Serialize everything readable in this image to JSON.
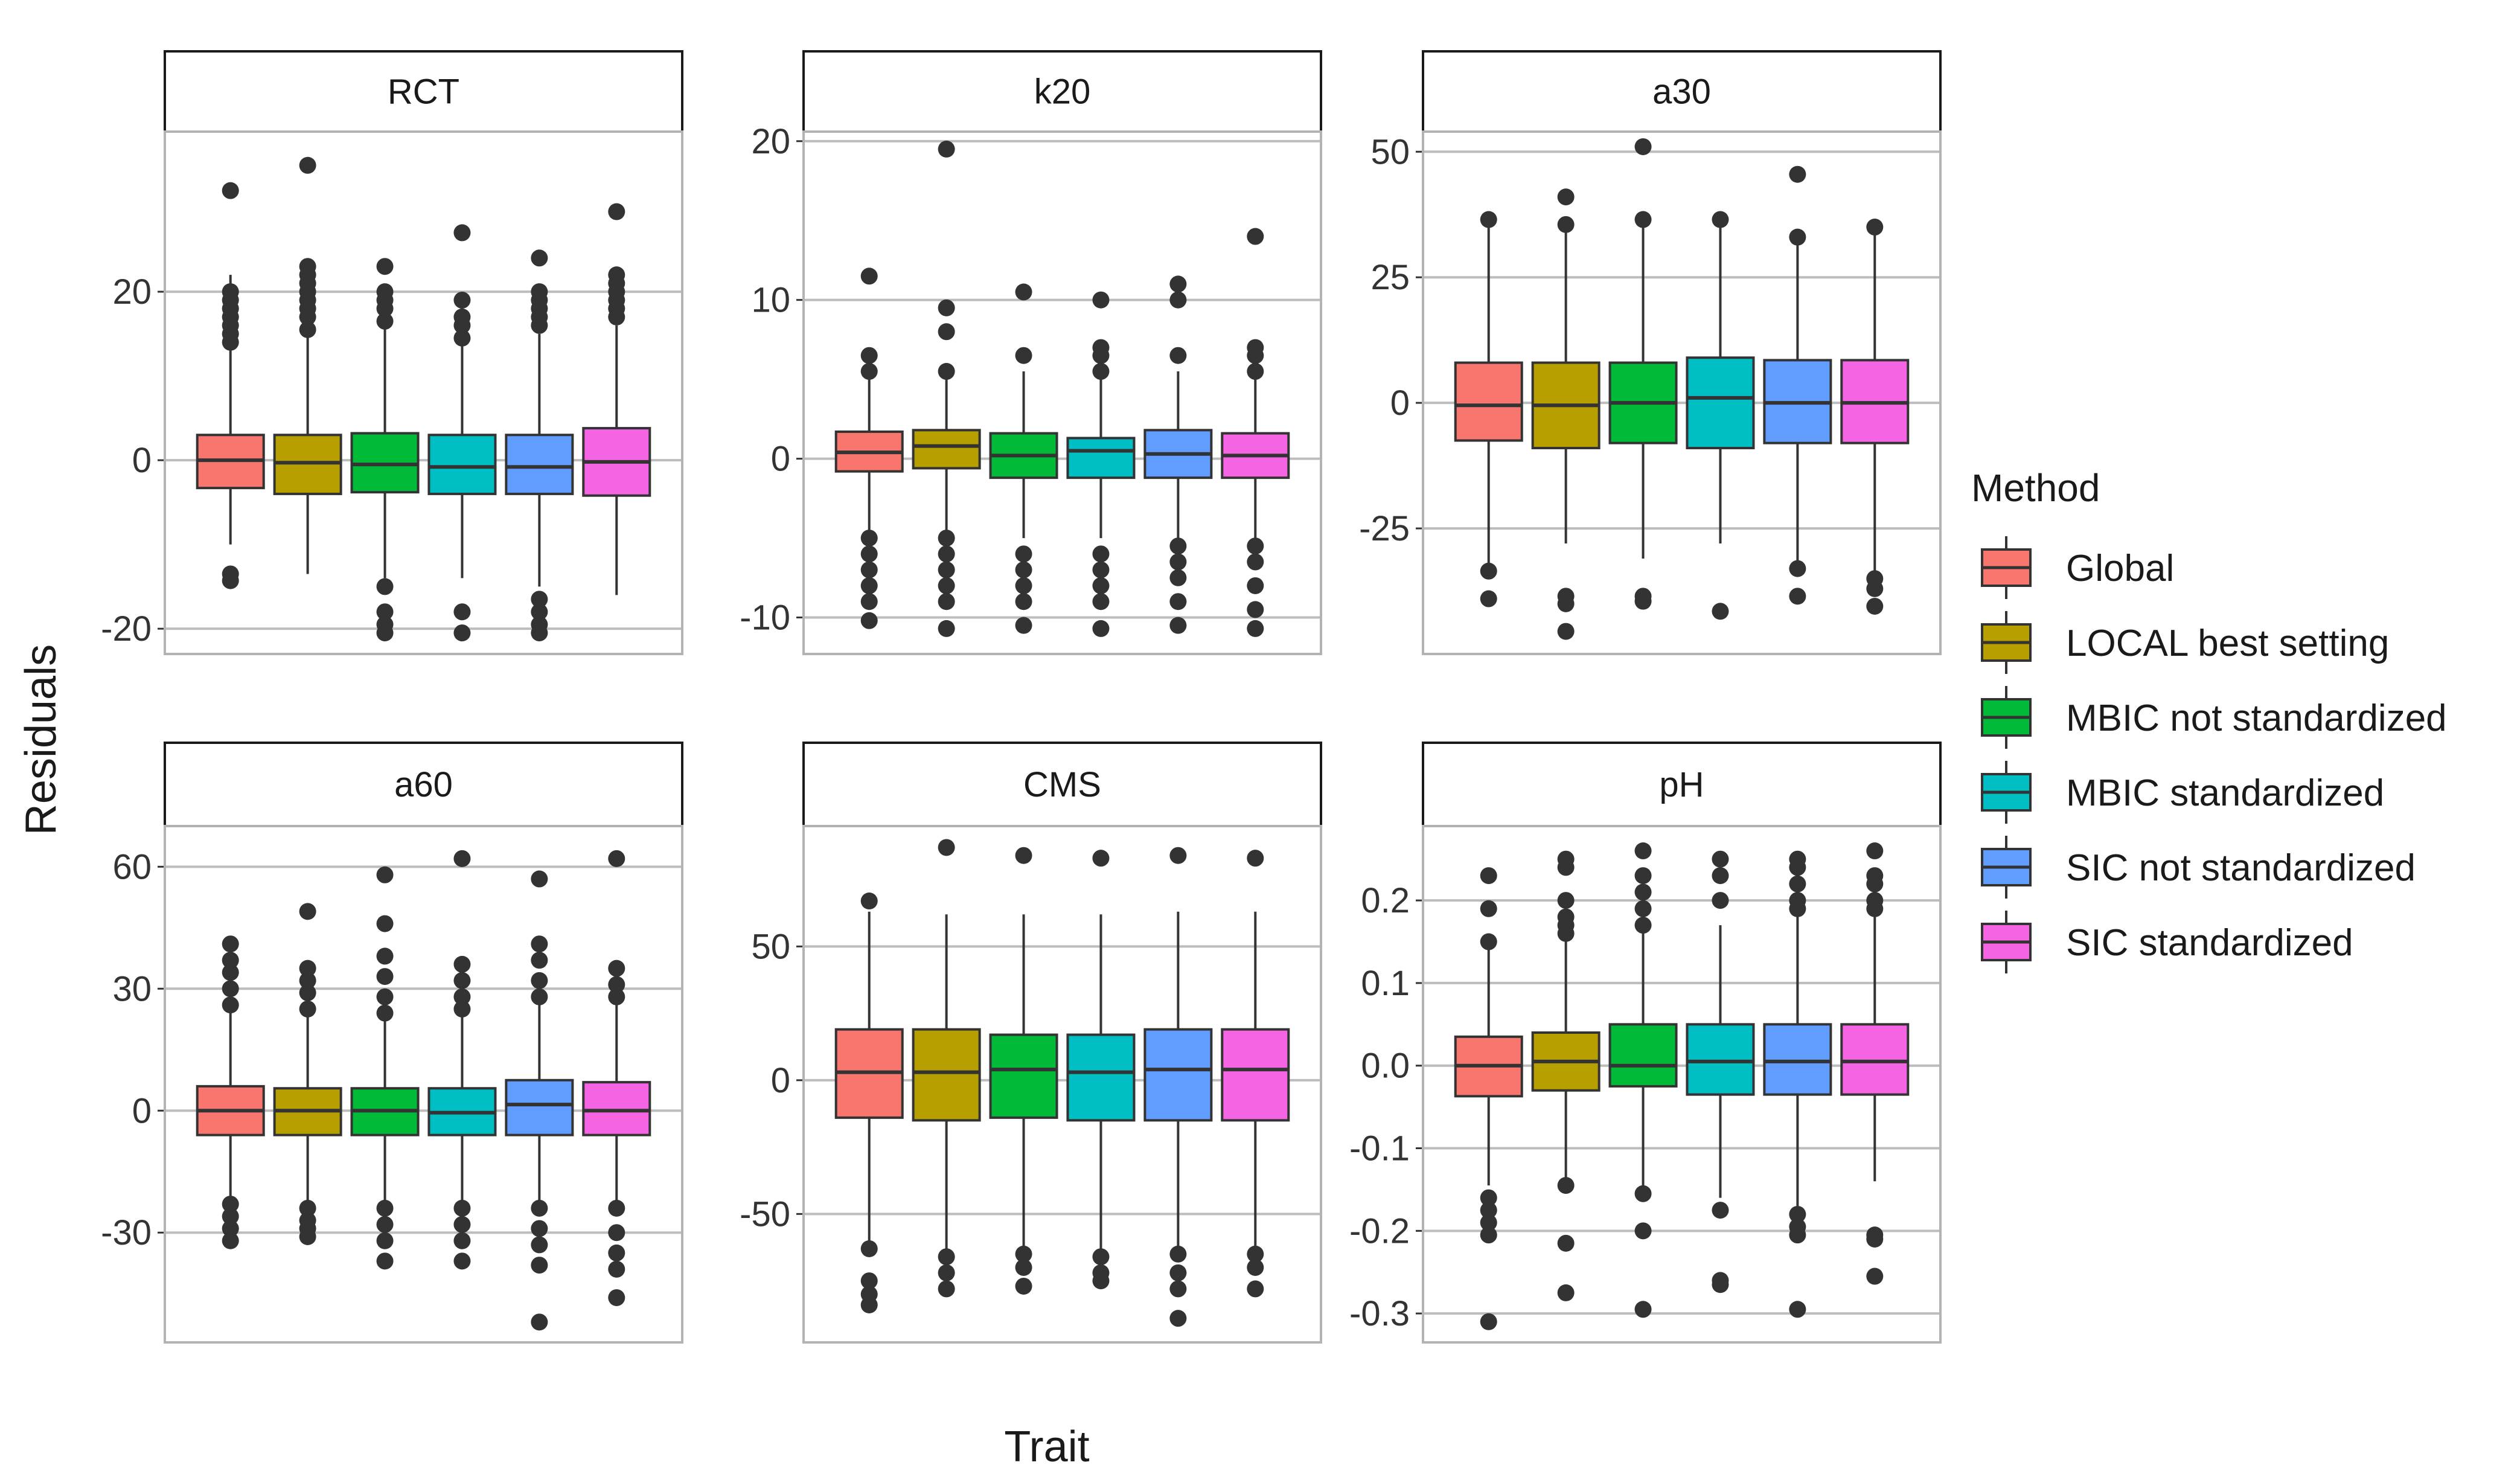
{
  "chart_data": {
    "type": "box",
    "xlabel": "Trait",
    "ylabel": "Residuals",
    "legend": {
      "title": "Method",
      "placement": "right",
      "entries": [
        {
          "name": "Global",
          "color": "#F8766D"
        },
        {
          "name": "LOCAL best setting",
          "color": "#B79F00"
        },
        {
          "name": "MBIC not standardized",
          "color": "#00BA38"
        },
        {
          "name": "MBIC standardized",
          "color": "#00BFC4"
        },
        {
          "name": "SIC not standardized",
          "color": "#619CFF"
        },
        {
          "name": "SIC standardized",
          "color": "#F564E3"
        }
      ]
    },
    "grid": "major y only",
    "panels": [
      {
        "trait": "RCT",
        "ylim": [
          -23,
          39
        ],
        "yticks": [
          -20,
          0,
          20
        ],
        "ytick_labels": [
          "-20",
          "0",
          "20"
        ],
        "boxes": [
          {
            "q1": -3.3,
            "median": 0,
            "q3": 3.0,
            "lo": -10,
            "hi": 22,
            "outliers": [
              -13.5,
              -14.3,
              14,
              15,
              16,
              17,
              18,
              19,
              20,
              32
            ]
          },
          {
            "q1": -4.0,
            "median": -0.3,
            "q3": 3.0,
            "lo": -13.5,
            "hi": 15,
            "outliers": [
              15.5,
              17,
              18,
              19,
              20,
              21,
              22,
              23,
              35
            ]
          },
          {
            "q1": -3.8,
            "median": -0.5,
            "q3": 3.2,
            "lo": -14,
            "hi": 16,
            "outliers": [
              -15,
              -18,
              -19.5,
              -20.5,
              16.5,
              18,
              19,
              20,
              23
            ]
          },
          {
            "q1": -4.0,
            "median": -0.8,
            "q3": 3.0,
            "lo": -14,
            "hi": 14,
            "outliers": [
              -18,
              -20.5,
              14.5,
              16,
              17,
              19,
              27
            ]
          },
          {
            "q1": -4.0,
            "median": -0.8,
            "q3": 3.0,
            "lo": -15,
            "hi": 15,
            "outliers": [
              -16.5,
              -18,
              -19.5,
              -20.5,
              16,
              17,
              18,
              19,
              20,
              24
            ]
          },
          {
            "q1": -4.2,
            "median": -0.2,
            "q3": 3.8,
            "lo": -16,
            "hi": 16,
            "outliers": [
              17,
              18,
              19,
              20,
              21,
              22,
              29.5
            ]
          }
        ]
      },
      {
        "trait": "k20",
        "ylim": [
          -12.3,
          20.6
        ],
        "yticks": [
          -10,
          0,
          10,
          20
        ],
        "ytick_labels": [
          "-10",
          "0",
          "10",
          "20"
        ],
        "boxes": [
          {
            "q1": -0.8,
            "median": 0.4,
            "q3": 1.7,
            "lo": -4.5,
            "hi": 5,
            "outliers": [
              -5,
              -6,
              -7,
              -8,
              -9,
              -10.2,
              5.5,
              6.5,
              11.5
            ]
          },
          {
            "q1": -0.6,
            "median": 0.8,
            "q3": 1.8,
            "lo": -4.5,
            "hi": 5,
            "outliers": [
              -5,
              -6,
              -7,
              -8,
              -9,
              -10.7,
              5.5,
              8,
              9.5,
              19.5
            ]
          },
          {
            "q1": -1.2,
            "median": 0.2,
            "q3": 1.6,
            "lo": -5,
            "hi": 5.5,
            "outliers": [
              -6,
              -7,
              -8,
              -9,
              -10.5,
              6.5,
              10.5
            ]
          },
          {
            "q1": -1.2,
            "median": 0.5,
            "q3": 1.3,
            "lo": -5,
            "hi": 5,
            "outliers": [
              -6,
              -7,
              -8,
              -9,
              -10.7,
              5.5,
              6.5,
              7,
              10
            ]
          },
          {
            "q1": -1.2,
            "median": 0.3,
            "q3": 1.8,
            "lo": -5,
            "hi": 5.5,
            "outliers": [
              -5.5,
              -6.5,
              -7.5,
              -9,
              -10.5,
              6.5,
              10,
              11
            ]
          },
          {
            "q1": -1.2,
            "median": 0.2,
            "q3": 1.6,
            "lo": -5,
            "hi": 5,
            "outliers": [
              -5.5,
              -6.5,
              -8,
              -9.5,
              -10.7,
              5.5,
              6.5,
              7,
              14
            ]
          }
        ]
      },
      {
        "trait": "a30",
        "ylim": [
          -50,
          54
        ],
        "yticks": [
          -25,
          0,
          25,
          50
        ],
        "ytick_labels": [
          "-25",
          "0",
          "25",
          "50"
        ],
        "boxes": [
          {
            "q1": -7.5,
            "median": -0.5,
            "q3": 8.0,
            "lo": -32,
            "hi": 36,
            "outliers": [
              -33.5,
              -39,
              36.5
            ]
          },
          {
            "q1": -9.0,
            "median": -0.5,
            "q3": 8.0,
            "lo": -28,
            "hi": 34,
            "outliers": [
              -38.5,
              -40,
              -45.5,
              35.5,
              41
            ]
          },
          {
            "q1": -8.0,
            "median": 0,
            "q3": 8.0,
            "lo": -31,
            "hi": 36,
            "outliers": [
              -38.5,
              -39.5,
              36.5,
              51
            ]
          },
          {
            "q1": -9.0,
            "median": 1.0,
            "q3": 9.0,
            "lo": -28,
            "hi": 36,
            "outliers": [
              -41.5,
              36.5
            ]
          },
          {
            "q1": -8.0,
            "median": 0,
            "q3": 8.5,
            "lo": -32,
            "hi": 32,
            "outliers": [
              -33,
              -38.5,
              33,
              45.5
            ]
          },
          {
            "q1": -8.0,
            "median": 0,
            "q3": 8.5,
            "lo": -34,
            "hi": 34,
            "outliers": [
              -35,
              -37,
              -40.5,
              35
            ]
          }
        ]
      },
      {
        "trait": "a60",
        "ylim": [
          -57,
          70
        ],
        "yticks": [
          -30,
          0,
          30,
          60
        ],
        "ytick_labels": [
          "-30",
          "0",
          "30",
          "60"
        ],
        "boxes": [
          {
            "q1": -6.0,
            "median": 0,
            "q3": 6.0,
            "lo": -22,
            "hi": 25,
            "outliers": [
              -23,
              -26,
              -29,
              -32,
              26,
              30,
              34,
              37,
              41
            ]
          },
          {
            "q1": -6.0,
            "median": 0,
            "q3": 5.5,
            "lo": -23,
            "hi": 24,
            "outliers": [
              -24,
              -27,
              -29,
              -31,
              25,
              29,
              32,
              35,
              49
            ]
          },
          {
            "q1": -6.0,
            "median": 0,
            "q3": 5.5,
            "lo": -22,
            "hi": 23,
            "outliers": [
              -24,
              -28,
              -32,
              -37,
              24,
              28,
              33,
              38,
              46,
              58
            ]
          },
          {
            "q1": -6.0,
            "median": -0.5,
            "q3": 5.5,
            "lo": -23,
            "hi": 24,
            "outliers": [
              -24,
              -28,
              -32,
              -37,
              25,
              28,
              32,
              36,
              62
            ]
          },
          {
            "q1": -6.0,
            "median": 1.5,
            "q3": 7.5,
            "lo": -23,
            "hi": 27,
            "outliers": [
              -24,
              -29,
              -33,
              -38,
              -52,
              28,
              32,
              37,
              41,
              57
            ]
          },
          {
            "q1": -6.0,
            "median": 0,
            "q3": 7.0,
            "lo": -23,
            "hi": 27,
            "outliers": [
              -24,
              -30,
              -35,
              -39,
              -46,
              28,
              31,
              35,
              62
            ]
          }
        ]
      },
      {
        "trait": "CMS",
        "ylim": [
          -98,
          95
        ],
        "yticks": [
          -50,
          0,
          50
        ],
        "ytick_labels": [
          "-50",
          "0",
          "50"
        ],
        "boxes": [
          {
            "q1": -14,
            "median": 3,
            "q3": 19,
            "lo": -62,
            "hi": 63,
            "outliers": [
              -63,
              -75,
              -80,
              -84,
              67
            ]
          },
          {
            "q1": -15,
            "median": 3,
            "q3": 19,
            "lo": -64,
            "hi": 62,
            "outliers": [
              -66,
              -72,
              -78,
              87
            ]
          },
          {
            "q1": -14,
            "median": 4,
            "q3": 17,
            "lo": -64,
            "hi": 62,
            "outliers": [
              -65,
              -70,
              -77,
              84
            ]
          },
          {
            "q1": -15,
            "median": 3,
            "q3": 17,
            "lo": -65,
            "hi": 62,
            "outliers": [
              -66,
              -72,
              -75,
              83
            ]
          },
          {
            "q1": -15,
            "median": 4,
            "q3": 19,
            "lo": -64,
            "hi": 63,
            "outliers": [
              -65,
              -72,
              -78,
              -89,
              84
            ]
          },
          {
            "q1": -15,
            "median": 4,
            "q3": 19,
            "lo": -64,
            "hi": 63,
            "outliers": [
              -65,
              -70,
              -78,
              83
            ]
          }
        ]
      },
      {
        "trait": "pH",
        "ylim": [
          -0.335,
          0.29
        ],
        "yticks": [
          -0.3,
          -0.2,
          -0.1,
          0.0,
          0.1,
          0.2
        ],
        "ytick_labels": [
          "-0.3",
          "-0.2",
          "-0.1",
          "0.0",
          "0.1",
          "0.2"
        ],
        "boxes": [
          {
            "q1": -0.037,
            "median": 0.0,
            "q3": 0.035,
            "lo": -0.145,
            "hi": 0.145,
            "outliers": [
              -0.16,
              -0.175,
              -0.19,
              -0.205,
              -0.31,
              0.15,
              0.19,
              0.23
            ]
          },
          {
            "q1": -0.03,
            "median": 0.005,
            "q3": 0.04,
            "lo": -0.14,
            "hi": 0.15,
            "outliers": [
              -0.145,
              -0.215,
              -0.275,
              0.16,
              0.17,
              0.18,
              0.2,
              0.24,
              0.25
            ]
          },
          {
            "q1": -0.025,
            "median": 0.0,
            "q3": 0.05,
            "lo": -0.145,
            "hi": 0.16,
            "outliers": [
              -0.155,
              -0.2,
              -0.295,
              0.17,
              0.19,
              0.21,
              0.23,
              0.26
            ]
          },
          {
            "q1": -0.035,
            "median": 0.005,
            "q3": 0.05,
            "lo": -0.16,
            "hi": 0.17,
            "outliers": [
              -0.175,
              -0.26,
              -0.265,
              0.2,
              0.23,
              0.25
            ]
          },
          {
            "q1": -0.035,
            "median": 0.005,
            "q3": 0.05,
            "lo": -0.17,
            "hi": 0.18,
            "outliers": [
              -0.18,
              -0.195,
              -0.205,
              -0.295,
              0.19,
              0.2,
              0.22,
              0.24,
              0.25
            ]
          },
          {
            "q1": -0.035,
            "median": 0.005,
            "q3": 0.05,
            "lo": -0.14,
            "hi": 0.18,
            "outliers": [
              -0.205,
              -0.21,
              -0.255,
              0.19,
              0.2,
              0.22,
              0.23,
              0.26
            ]
          }
        ]
      }
    ]
  }
}
